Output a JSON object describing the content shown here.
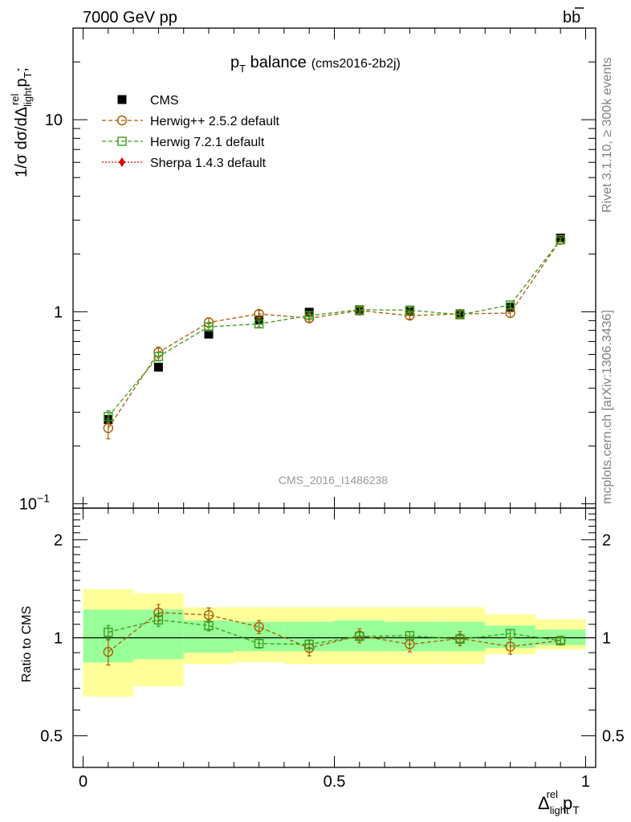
{
  "header": {
    "left": "7000 GeV pp",
    "right": "b"
  },
  "side_text": {
    "rivet": "Rivet 3.1.10, ≥ 300k events",
    "mcplots": "mcplots.cern.ch [arXiv:1306.3436]"
  },
  "watermark": "CMS_2016_I1486238",
  "chart_data": [
    {
      "type": "scatter",
      "title": "p",
      "title_sub": "T",
      "title_rest": " balance",
      "title_tag": "(cms2016-2b2j)",
      "ylabel": "1/σ dσ/dΔ",
      "ylabel_sub": "light",
      "ylabel_sup": "rel",
      "ylabel_rest": "p",
      "ylabel_rest_sub": "T",
      "ylabel_end": ";",
      "yscale": "log",
      "xlim": [
        -0.02,
        1.02
      ],
      "ylim": [
        0.095,
        30
      ],
      "yticks": [
        {
          "v": 0.1,
          "label": "10",
          "exp": "−1"
        },
        {
          "v": 1,
          "label": "1"
        },
        {
          "v": 10,
          "label": "10"
        }
      ],
      "legend_position": "top-left",
      "x": [
        0.05,
        0.15,
        0.25,
        0.35,
        0.45,
        0.55,
        0.65,
        0.75,
        0.85,
        0.95
      ],
      "series": [
        {
          "name": "CMS",
          "color": "#000000",
          "marker": "square-filled",
          "style": "none",
          "values": [
            0.275,
            0.515,
            0.765,
            0.905,
            0.995,
            1.015,
            1.005,
            0.975,
            1.055,
            2.42
          ]
        },
        {
          "name": "Herwig++ 2.5.2 default",
          "color": "#a85c00",
          "marker": "circle-open",
          "style": "dashed",
          "values": [
            0.248,
            0.615,
            0.88,
            0.975,
            0.925,
            1.015,
            0.955,
            0.975,
            0.985,
            2.37
          ],
          "errors": [
            0.03,
            0.04,
            0.05,
            0.04,
            0.04,
            0.04,
            0.04,
            0.04,
            0.05,
            0.06
          ]
        },
        {
          "name": "Herwig 7.2.1 default",
          "color": "#3a9a1a",
          "marker": "square-open",
          "style": "dashed",
          "values": [
            0.285,
            0.585,
            0.835,
            0.865,
            0.955,
            1.025,
            1.02,
            0.965,
            1.085,
            2.37
          ],
          "errors": [
            0.02,
            0.03,
            0.03,
            0.03,
            0.03,
            0.03,
            0.03,
            0.03,
            0.03,
            0.05
          ]
        },
        {
          "name": "Sherpa 1.4.3 default",
          "color": "#e00000",
          "marker": "diamond-filled",
          "style": "dotted",
          "values": []
        }
      ]
    },
    {
      "type": "scatter",
      "ylabel": "Ratio to CMS",
      "xlabel": "Δ",
      "xlabel_sub": "light",
      "xlabel_sup": "rel",
      "xlabel_rest": "p",
      "xlabel_rest_sub": "T",
      "yscale": "log",
      "xlim": [
        -0.02,
        1.02
      ],
      "ylim": [
        0.4,
        2.5
      ],
      "xticks": [
        {
          "v": 0,
          "label": "0"
        },
        {
          "v": 0.5,
          "label": "0.5"
        },
        {
          "v": 1,
          "label": "1"
        }
      ],
      "yticks": [
        {
          "v": 0.5,
          "label": "0.5"
        },
        {
          "v": 1,
          "label": "1"
        },
        {
          "v": 2,
          "label": "2"
        }
      ],
      "bands": {
        "edges": [
          0,
          0.1,
          0.2,
          0.3,
          0.4,
          0.5,
          0.6,
          0.7,
          0.8,
          0.9,
          1.0
        ],
        "outer_color": "#ffff99",
        "inner_color": "#99ff99",
        "outer_low": [
          0.66,
          0.71,
          0.83,
          0.84,
          0.83,
          0.83,
          0.83,
          0.83,
          0.89,
          0.92
        ],
        "outer_high": [
          1.41,
          1.37,
          1.24,
          1.24,
          1.24,
          1.24,
          1.24,
          1.24,
          1.18,
          1.14
        ],
        "inner_low": [
          0.84,
          0.86,
          0.9,
          0.91,
          0.91,
          0.91,
          0.91,
          0.91,
          0.93,
          0.95
        ],
        "inner_high": [
          1.22,
          1.22,
          1.13,
          1.12,
          1.12,
          1.13,
          1.12,
          1.12,
          1.09,
          1.06
        ]
      },
      "x": [
        0.05,
        0.15,
        0.25,
        0.35,
        0.45,
        0.55,
        0.65,
        0.75,
        0.85,
        0.95
      ],
      "series": [
        {
          "name": "Herwig++ 2.5.2 default",
          "color": "#a85c00",
          "marker": "circle-open",
          "style": "dashed",
          "values": [
            0.905,
            1.195,
            1.175,
            1.08,
            0.93,
            1.015,
            0.955,
            0.995,
            0.94,
            0.98
          ],
          "errors": [
            0.08,
            0.07,
            0.06,
            0.05,
            0.05,
            0.05,
            0.05,
            0.05,
            0.05,
            0.03
          ]
        },
        {
          "name": "Herwig 7.2.1 default",
          "color": "#3a9a1a",
          "marker": "square-open",
          "style": "dashed",
          "values": [
            1.04,
            1.135,
            1.09,
            0.96,
            0.955,
            1.01,
            1.015,
            0.99,
            1.03,
            0.98
          ],
          "errors": [
            0.05,
            0.05,
            0.04,
            0.03,
            0.03,
            0.03,
            0.03,
            0.03,
            0.03,
            0.02
          ]
        }
      ]
    }
  ]
}
